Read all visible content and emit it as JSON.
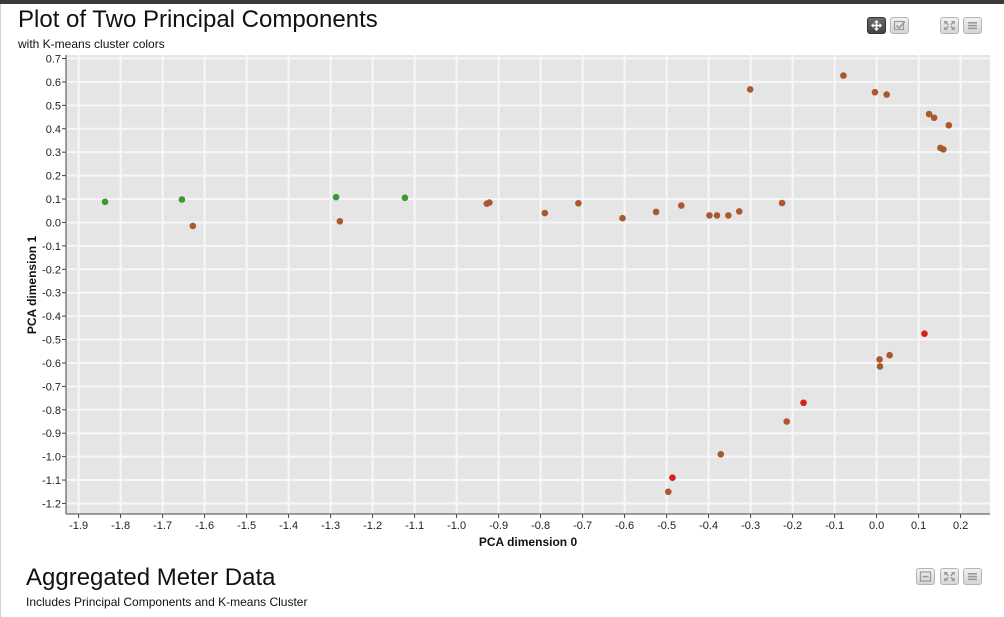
{
  "panel1": {
    "title": "Plot of Two Principal Components",
    "subtitle": "with K-means cluster colors",
    "toolbar": {
      "pan_icon": "pan-move-icon",
      "select_icon": "box-select-icon",
      "fullscreen_icon": "fullscreen-icon",
      "menu_icon": "hamburger-menu-icon"
    }
  },
  "panel2": {
    "title": "Aggregated Meter Data",
    "subtitle": "Includes Principal Components and K-means Cluster",
    "toolbar": {
      "minimize_icon": "minimize-icon",
      "fullscreen_icon": "fullscreen-icon",
      "menu_icon": "hamburger-menu-icon"
    }
  },
  "colors": {
    "plot_background": "#e5e5e5",
    "grid": "#f7f7f7",
    "cluster_0": "#a9592d",
    "cluster_1": "#3a9a32",
    "cluster_2": "#d42020"
  },
  "chart_data": {
    "type": "scatter",
    "xlabel": "PCA dimension 0",
    "ylabel": "PCA dimension 1",
    "xlim": [
      -1.93,
      0.27
    ],
    "ylim": [
      -1.245,
      0.715
    ],
    "xticks": [
      "-1.9",
      "-1.8",
      "-1.7",
      "-1.6",
      "-1.5",
      "-1.4",
      "-1.3",
      "-1.2",
      "-1.1",
      "-1.0",
      "-0.9",
      "-0.8",
      "-0.7",
      "-0.6",
      "-0.5",
      "-0.4",
      "-0.3",
      "-0.2",
      "-0.1",
      "0.0",
      "0.1",
      "0.2"
    ],
    "yticks": [
      "0.7",
      "0.6",
      "0.5",
      "0.4",
      "0.3",
      "0.2",
      "0.1",
      "0.0",
      "-0.1",
      "-0.2",
      "-0.3",
      "-0.4",
      "-0.5",
      "-0.6",
      "-0.7",
      "-0.8",
      "-0.9",
      "-1.0",
      "-1.1",
      "-1.2"
    ],
    "grid": true,
    "legend": "none",
    "series": [
      {
        "color": "#a9592d",
        "x": [
          -1.628,
          -1.278,
          -0.928,
          -0.922,
          -0.79,
          -0.71,
          -0.605,
          -0.525,
          -0.465,
          -0.398,
          -0.38,
          -0.353,
          -0.327,
          -0.225,
          -0.301,
          -0.079,
          -0.004,
          0.024,
          0.125,
          0.137,
          0.172,
          0.152,
          0.159,
          0.007,
          0.008,
          0.031,
          -0.214,
          -0.371,
          -0.496
        ],
        "y": [
          -0.015,
          0.005,
          0.08,
          0.085,
          0.04,
          0.082,
          0.018,
          0.045,
          0.072,
          0.03,
          0.03,
          0.03,
          0.047,
          0.083,
          0.568,
          0.627,
          0.556,
          0.546,
          0.463,
          0.447,
          0.415,
          0.318,
          0.312,
          -0.585,
          -0.615,
          -0.567,
          -0.85,
          -0.99,
          -1.15
        ]
      },
      {
        "color": "#3a9a32",
        "x": [
          -1.837,
          -1.654,
          -1.287,
          -1.123
        ],
        "y": [
          0.088,
          0.098,
          0.108,
          0.105
        ]
      },
      {
        "color": "#d42020",
        "x": [
          -0.486,
          -0.174,
          0.114
        ],
        "y": [
          -1.09,
          -0.77,
          -0.475
        ]
      }
    ]
  }
}
